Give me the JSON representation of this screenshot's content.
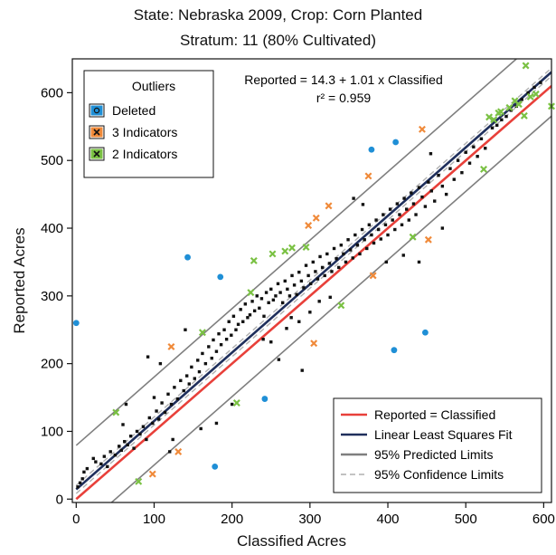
{
  "chart_data": {
    "type": "scatter",
    "title": "State: Nebraska 2009, Crop: Corn Planted",
    "subtitle": "Stratum: 11 (80% Cultivated)",
    "xlabel": "Classified Acres",
    "ylabel": "Reported Acres",
    "xlim": [
      -5,
      610
    ],
    "ylim": [
      -5,
      650
    ],
    "xticks": [
      "0",
      "100",
      "200",
      "300",
      "400",
      "500",
      "600"
    ],
    "yticks": [
      "0",
      "100",
      "200",
      "300",
      "400",
      "500",
      "600"
    ],
    "grid": false,
    "equation": "Reported = 14.3 + 1.01 x Classified",
    "r2": "r² = 0.959",
    "outlier_legend": {
      "title": "Outliers",
      "placement": "top-left",
      "entries": [
        {
          "label": "Deleted",
          "color": "#1f8fd6",
          "marker": "circle"
        },
        {
          "label": "3 Indicators",
          "color": "#f08a3a",
          "marker": "x"
        },
        {
          "label": "2 Indicators",
          "color": "#7ac143",
          "marker": "x"
        }
      ]
    },
    "line_legend": {
      "placement": "bottom-right",
      "entries": [
        {
          "label": "Reported = Classified",
          "color": "#e8403a",
          "style": "solid"
        },
        {
          "label": "Linear Least Squares Fit",
          "color": "#1f2f5c",
          "style": "solid"
        },
        {
          "label": "95% Predicted Limits",
          "color": "#7f7f7f",
          "style": "solid"
        },
        {
          "label": "95% Confidence Limits",
          "color": "#b0b0b0",
          "style": "dashed"
        }
      ]
    },
    "fit": {
      "intercept": 14.3,
      "slope": 1.01,
      "pred_halfwidth": 65,
      "conf_halfwidth": 6
    },
    "series": [
      {
        "name": "Deleted",
        "color": "#1f8fd6",
        "marker": "circle",
        "points": [
          [
            0,
            260
          ],
          [
            143,
            357
          ],
          [
            185,
            328
          ],
          [
            178,
            48
          ],
          [
            242,
            148
          ],
          [
            379,
            516
          ],
          [
            410,
            527
          ],
          [
            408,
            220
          ],
          [
            448,
            246
          ]
        ]
      },
      {
        "name": "3 Indicators",
        "color": "#f08a3a",
        "marker": "x",
        "points": [
          [
            98,
            37
          ],
          [
            122,
            225
          ],
          [
            131,
            70
          ],
          [
            298,
            404
          ],
          [
            305,
            230
          ],
          [
            308,
            415
          ],
          [
            324,
            433
          ],
          [
            375,
            477
          ],
          [
            381,
            330
          ],
          [
            444,
            546
          ],
          [
            452,
            383
          ]
        ]
      },
      {
        "name": "2 Indicators",
        "color": "#7ac143",
        "marker": "x",
        "points": [
          [
            51,
            128
          ],
          [
            80,
            26
          ],
          [
            162,
            246
          ],
          [
            206,
            142
          ],
          [
            224,
            305
          ],
          [
            228,
            352
          ],
          [
            252,
            362
          ],
          [
            268,
            366
          ],
          [
            277,
            371
          ],
          [
            295,
            372
          ],
          [
            340,
            286
          ],
          [
            432,
            387
          ],
          [
            523,
            487
          ],
          [
            530,
            564
          ],
          [
            536,
            560
          ],
          [
            545,
            572
          ],
          [
            556,
            578
          ],
          [
            568,
            583
          ],
          [
            575,
            566
          ],
          [
            577,
            640
          ],
          [
            583,
            594
          ],
          [
            590,
            598
          ],
          [
            610,
            580
          ],
          [
            542,
            570
          ],
          [
            563,
            588
          ]
        ]
      },
      {
        "name": "Unlabeled",
        "color": "#111111",
        "marker": "square",
        "points": [
          [
            2,
            18
          ],
          [
            5,
            24
          ],
          [
            8,
            30
          ],
          [
            10,
            40
          ],
          [
            14,
            45
          ],
          [
            22,
            60
          ],
          [
            25,
            55
          ],
          [
            32,
            52
          ],
          [
            36,
            63
          ],
          [
            40,
            48
          ],
          [
            44,
            70
          ],
          [
            50,
            65
          ],
          [
            55,
            78
          ],
          [
            58,
            72
          ],
          [
            62,
            85
          ],
          [
            66,
            80
          ],
          [
            70,
            93
          ],
          [
            74,
            75
          ],
          [
            78,
            100
          ],
          [
            82,
            96
          ],
          [
            86,
            107
          ],
          [
            90,
            88
          ],
          [
            94,
            120
          ],
          [
            98,
            112
          ],
          [
            100,
            150
          ],
          [
            103,
            130
          ],
          [
            106,
            118
          ],
          [
            110,
            142
          ],
          [
            114,
            128
          ],
          [
            118,
            155
          ],
          [
            122,
            140
          ],
          [
            126,
            165
          ],
          [
            130,
            148
          ],
          [
            134,
            175
          ],
          [
            138,
            160
          ],
          [
            142,
            182
          ],
          [
            145,
            170
          ],
          [
            148,
            195
          ],
          [
            152,
            178
          ],
          [
            156,
            205
          ],
          [
            158,
            188
          ],
          [
            162,
            215
          ],
          [
            166,
            200
          ],
          [
            170,
            225
          ],
          [
            174,
            208
          ],
          [
            176,
            235
          ],
          [
            180,
            218
          ],
          [
            183,
            244
          ],
          [
            186,
            228
          ],
          [
            190,
            250
          ],
          [
            193,
            236
          ],
          [
            196,
            262
          ],
          [
            199,
            242
          ],
          [
            202,
            270
          ],
          [
            205,
            250
          ],
          [
            208,
            258
          ],
          [
            211,
            280
          ],
          [
            214,
            262
          ],
          [
            217,
            288
          ],
          [
            220,
            268
          ],
          [
            223,
            272
          ],
          [
            226,
            292
          ],
          [
            229,
            278
          ],
          [
            232,
            300
          ],
          [
            235,
            282
          ],
          [
            238,
            296
          ],
          [
            241,
            270
          ],
          [
            244,
            305
          ],
          [
            247,
            290
          ],
          [
            250,
            310
          ],
          [
            253,
            294
          ],
          [
            256,
            300
          ],
          [
            259,
            318
          ],
          [
            262,
            305
          ],
          [
            265,
            290
          ],
          [
            268,
            322
          ],
          [
            271,
            310
          ],
          [
            274,
            300
          ],
          [
            277,
            330
          ],
          [
            280,
            316
          ],
          [
            283,
            302
          ],
          [
            286,
            335
          ],
          [
            289,
            322
          ],
          [
            292,
            312
          ],
          [
            295,
            345
          ],
          [
            298,
            330
          ],
          [
            301,
            318
          ],
          [
            304,
            350
          ],
          [
            307,
            336
          ],
          [
            310,
            325
          ],
          [
            313,
            358
          ],
          [
            316,
            342
          ],
          [
            319,
            330
          ],
          [
            322,
            362
          ],
          [
            325,
            348
          ],
          [
            328,
            336
          ],
          [
            331,
            370
          ],
          [
            334,
            355
          ],
          [
            337,
            342
          ],
          [
            340,
            375
          ],
          [
            343,
            362
          ],
          [
            346,
            350
          ],
          [
            349,
            383
          ],
          [
            352,
            368
          ],
          [
            355,
            356
          ],
          [
            358,
            390
          ],
          [
            361,
            375
          ],
          [
            364,
            362
          ],
          [
            367,
            398
          ],
          [
            370,
            383
          ],
          [
            373,
            370
          ],
          [
            376,
            405
          ],
          [
            379,
            390
          ],
          [
            382,
            378
          ],
          [
            385,
            412
          ],
          [
            388,
            398
          ],
          [
            391,
            384
          ],
          [
            394,
            420
          ],
          [
            397,
            405
          ],
          [
            400,
            390
          ],
          [
            403,
            428
          ],
          [
            406,
            412
          ],
          [
            409,
            398
          ],
          [
            412,
            436
          ],
          [
            415,
            420
          ],
          [
            418,
            405
          ],
          [
            421,
            444
          ],
          [
            424,
            428
          ],
          [
            427,
            412
          ],
          [
            430,
            452
          ],
          [
            433,
            436
          ],
          [
            436,
            420
          ],
          [
            440,
            460
          ],
          [
            444,
            446
          ],
          [
            448,
            432
          ],
          [
            452,
            468
          ],
          [
            456,
            455
          ],
          [
            460,
            440
          ],
          [
            465,
            478
          ],
          [
            470,
            462
          ],
          [
            475,
            450
          ],
          [
            480,
            488
          ],
          [
            485,
            472
          ],
          [
            490,
            500
          ],
          [
            495,
            482
          ],
          [
            500,
            512
          ],
          [
            505,
            496
          ],
          [
            510,
            520
          ],
          [
            515,
            506
          ],
          [
            520,
            532
          ],
          [
            525,
            518
          ],
          [
            534,
            548
          ],
          [
            540,
            552
          ],
          [
            546,
            560
          ],
          [
            552,
            565
          ],
          [
            558,
            574
          ],
          [
            565,
            580
          ],
          [
            572,
            590
          ],
          [
            580,
            600
          ],
          [
            588,
            608
          ],
          [
            596,
            615
          ],
          [
            356,
            444
          ],
          [
            368,
            435
          ],
          [
            180,
            112
          ],
          [
            200,
            140
          ],
          [
            160,
            104
          ],
          [
            260,
            206
          ],
          [
            290,
            190
          ],
          [
            140,
            250
          ],
          [
            124,
            88
          ],
          [
            120,
            70
          ],
          [
            92,
            210
          ],
          [
            108,
            200
          ],
          [
            64,
            140
          ],
          [
            60,
            110
          ],
          [
            420,
            360
          ],
          [
            440,
            350
          ],
          [
            470,
            400
          ],
          [
            455,
            510
          ],
          [
            398,
            350
          ],
          [
            300,
            276
          ],
          [
            312,
            292
          ],
          [
            326,
            298
          ],
          [
            240,
            236
          ],
          [
            250,
            232
          ],
          [
            270,
            252
          ],
          [
            276,
            268
          ],
          [
            286,
            262
          ]
        ]
      }
    ]
  },
  "colors": {
    "identity": "#e8403a",
    "fit": "#1f2f5c",
    "predicted": "#7f7f7f",
    "confidence": "#b0b0b0"
  }
}
